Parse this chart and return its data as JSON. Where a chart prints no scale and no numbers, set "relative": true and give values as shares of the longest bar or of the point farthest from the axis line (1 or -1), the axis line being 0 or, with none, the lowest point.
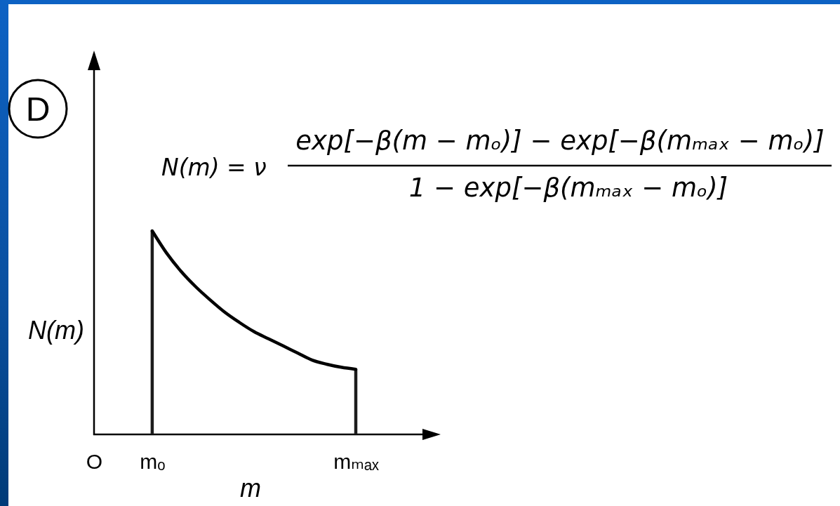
{
  "chart_data": {
    "type": "line",
    "title": "D",
    "xlabel": "m",
    "ylabel": "N(m)",
    "annotations": [
      "N(m) = ν",
      "exp[−β(m − mₒ)] − exp[−β(mₘₐₓ − mₒ)]",
      "1 − exp[−β(mₘₐₓ − mₒ)]"
    ],
    "relative": true,
    "categories": [
      "O",
      null,
      null,
      null,
      "mₒ",
      null,
      null,
      null,
      null,
      null,
      null,
      null,
      null,
      null,
      null,
      null,
      null,
      null,
      "mₘₐₓ"
    ],
    "series": [
      {
        "color": "#000000",
        "values": [
          null,
          null,
          null,
          null,
          1,
          0.89,
          0.8,
          0.725,
          0.66,
          0.6,
          0.55,
          0.505,
          0.47,
          0.435,
          0.4,
          0.365,
          0.345,
          0.33,
          0.32
        ]
      },
      {
        "type": "bar",
        "color": "#1c1c1c",
        "values": [
          null,
          null,
          null,
          null,
          1,
          null,
          null,
          null,
          null,
          null,
          null,
          null,
          null,
          null,
          null,
          null,
          null,
          null,
          0.32
        ]
      }
    ]
  }
}
